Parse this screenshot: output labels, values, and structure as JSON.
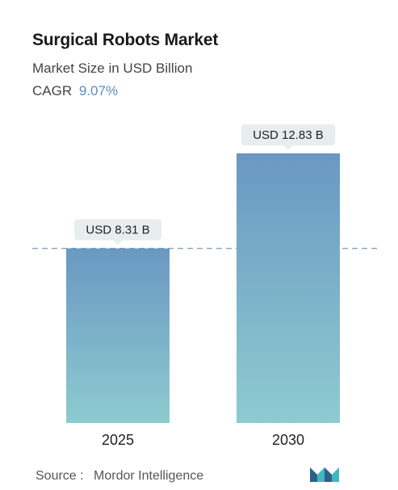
{
  "header": {
    "title": "Surgical Robots Market",
    "subtitle": "Market Size in USD Billion",
    "cagr_label": "CAGR",
    "cagr_value": "9.07%"
  },
  "chart_data": {
    "type": "bar",
    "categories": [
      "2025",
      "2030"
    ],
    "values": [
      8.31,
      12.83
    ],
    "value_labels": [
      "USD 8.31 B",
      "USD 12.83 B"
    ],
    "title": "Surgical Robots Market",
    "subtitle": "Market Size in USD Billion",
    "xlabel": "",
    "ylabel": "",
    "ylim": [
      0,
      12.83
    ],
    "grid": false,
    "reference_line": "dashed line at the 2025 value",
    "colors": {
      "bar_top": "#6a98c2",
      "bar_bottom": "#8ecbd0",
      "label_bg": "#e8eeef",
      "dashed_line": "#8aa4b8",
      "cagr_accent": "#5b8fbd"
    }
  },
  "footer": {
    "source_label": "Source :",
    "source_name": "Mordor Intelligence",
    "logo_icon": "mordor-intelligence-logo-icon",
    "logo_colors": [
      "#2f5f8a",
      "#3fb8c2"
    ]
  }
}
